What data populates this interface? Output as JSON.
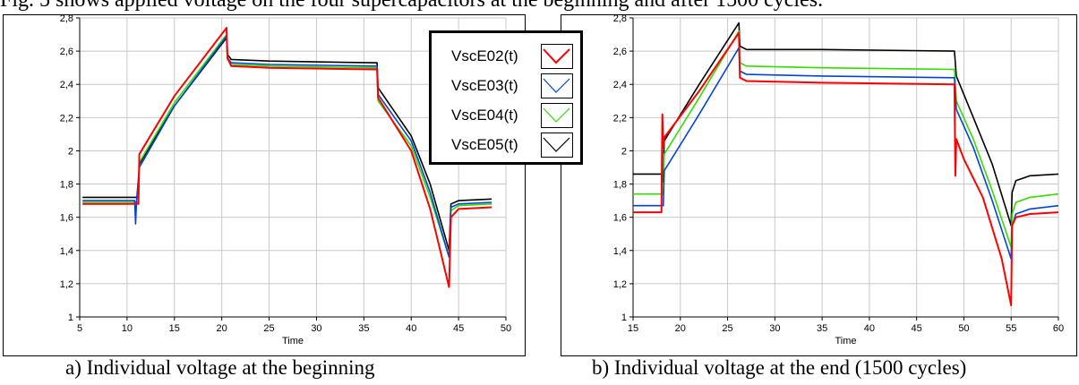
{
  "caption_top": "Fig. 5 shows applied voltage on the four supercapacitors at the beginning and after 1500 cycles.",
  "legend": [
    {
      "label": "VscE02(t)",
      "color": "#ff0000"
    },
    {
      "label": "VscE03(t)",
      "color": "#0044dd"
    },
    {
      "label": "VscE04(t)",
      "color": "#33dd00"
    },
    {
      "label": "VscE05(t)",
      "color": "#000000"
    }
  ],
  "chart_data": [
    {
      "type": "line",
      "caption": "a) Individual voltage at the beginning",
      "xlabel": "Time",
      "ylabel": "",
      "xlim": [
        5,
        50
      ],
      "ylim": [
        1,
        2.8
      ],
      "xticks": [
        5,
        10,
        15,
        20,
        25,
        30,
        35,
        40,
        45,
        50
      ],
      "yticks": [
        1,
        1.2,
        1.4,
        1.6,
        1.8,
        2,
        2.2,
        2.4,
        2.6,
        2.8
      ],
      "ytick_labels": [
        "1",
        "1,2",
        "1,4",
        "1,6",
        "1,8",
        "2",
        "2,2",
        "2,4",
        "2,6",
        "2,8"
      ],
      "grid": true,
      "legend_position": "top-right",
      "series": [
        {
          "name": "VscE02(t)",
          "color": "#ff0000",
          "x": [
            5.3,
            11,
            11.2,
            11.3,
            15,
            20.5,
            20.6,
            21,
            25,
            36,
            36.4,
            36.5,
            40,
            42,
            44,
            44.2,
            45,
            48.5
          ],
          "y": [
            1.68,
            1.68,
            1.68,
            1.98,
            2.33,
            2.74,
            2.56,
            2.51,
            2.5,
            2.49,
            2.49,
            2.32,
            2.0,
            1.65,
            1.18,
            1.6,
            1.65,
            1.66
          ]
        },
        {
          "name": "VscE03(t)",
          "color": "#0044dd",
          "x": [
            5.3,
            10.8,
            10.9,
            11,
            11.3,
            15,
            20.5,
            20.6,
            21,
            25,
            36,
            36.4,
            36.5,
            40,
            42,
            44,
            44.2,
            45,
            48.5
          ],
          "y": [
            1.7,
            1.7,
            1.56,
            1.7,
            1.9,
            2.27,
            2.69,
            2.56,
            2.53,
            2.52,
            2.51,
            2.51,
            2.34,
            2.06,
            1.75,
            1.36,
            1.66,
            1.68,
            1.69
          ]
        },
        {
          "name": "VscE04(t)",
          "color": "#33dd00",
          "x": [
            5.3,
            11,
            11.2,
            11.3,
            15,
            20.5,
            20.6,
            21,
            25,
            36,
            36.4,
            36.5,
            40,
            42,
            44,
            44.2,
            45,
            48.5
          ],
          "y": [
            1.69,
            1.69,
            1.69,
            1.93,
            2.29,
            2.7,
            2.55,
            2.52,
            2.51,
            2.5,
            2.5,
            2.3,
            2.03,
            1.72,
            1.36,
            1.64,
            1.67,
            1.68
          ]
        },
        {
          "name": "VscE05(t)",
          "color": "#000000",
          "x": [
            5.3,
            11,
            11.2,
            11.3,
            15,
            20.5,
            20.6,
            21,
            25,
            36,
            36.4,
            36.5,
            40,
            42,
            44,
            44.2,
            45,
            48.5
          ],
          "y": [
            1.72,
            1.72,
            1.72,
            1.92,
            2.27,
            2.68,
            2.58,
            2.55,
            2.54,
            2.53,
            2.53,
            2.38,
            2.09,
            1.8,
            1.4,
            1.68,
            1.7,
            1.71
          ]
        }
      ]
    },
    {
      "type": "line",
      "caption": "b) Individual voltage at the end (1500 cycles)",
      "xlabel": "Time",
      "ylabel": "",
      "xlim": [
        15,
        60
      ],
      "ylim": [
        1,
        2.8
      ],
      "xticks": [
        15,
        20,
        25,
        30,
        35,
        40,
        45,
        50,
        55,
        60
      ],
      "yticks": [
        1,
        1.2,
        1.4,
        1.6,
        1.8,
        2,
        2.2,
        2.4,
        2.6,
        2.8
      ],
      "ytick_labels": [
        "1",
        "1,2",
        "1,4",
        "1,6",
        "1,8",
        "2",
        "2,2",
        "2,4",
        "2,6",
        "2,8"
      ],
      "grid": true,
      "series": [
        {
          "name": "VscE02(t)",
          "color": "#ff0000",
          "x": [
            15,
            18,
            18.1,
            18.2,
            18.3,
            22,
            26.2,
            26.3,
            27,
            35,
            49,
            49.1,
            49.2,
            50,
            52,
            54,
            55,
            55.1,
            55.5,
            57,
            60
          ],
          "y": [
            1.63,
            1.63,
            2.22,
            2.02,
            2.08,
            2.36,
            2.71,
            2.44,
            2.42,
            2.41,
            2.4,
            1.85,
            2.07,
            1.95,
            1.72,
            1.35,
            1.07,
            1.55,
            1.6,
            1.62,
            1.63
          ]
        },
        {
          "name": "VscE03(t)",
          "color": "#0044dd",
          "x": [
            15,
            18,
            18.2,
            18.3,
            22,
            26.2,
            26.3,
            27,
            35,
            49,
            49.2,
            51,
            53,
            55,
            55.1,
            55.5,
            57,
            60
          ],
          "y": [
            1.67,
            1.67,
            1.67,
            1.88,
            2.22,
            2.62,
            2.48,
            2.46,
            2.45,
            2.44,
            2.25,
            2.02,
            1.7,
            1.35,
            1.55,
            1.62,
            1.65,
            1.67
          ]
        },
        {
          "name": "VscE04(t)",
          "color": "#33dd00",
          "x": [
            15,
            18,
            18.2,
            18.3,
            22,
            26.2,
            26.3,
            27,
            35,
            49,
            49.2,
            51,
            53,
            55,
            55.1,
            55.5,
            57,
            60
          ],
          "y": [
            1.74,
            1.74,
            1.74,
            1.98,
            2.32,
            2.72,
            2.53,
            2.51,
            2.5,
            2.49,
            2.3,
            2.07,
            1.76,
            1.42,
            1.62,
            1.69,
            1.72,
            1.74
          ]
        },
        {
          "name": "VscE05(t)",
          "color": "#000000",
          "x": [
            15,
            18,
            18.1,
            18.2,
            18.3,
            22,
            26.2,
            26.3,
            27,
            35,
            49,
            49.2,
            51,
            53,
            55,
            55.1,
            55.5,
            57,
            60
          ],
          "y": [
            1.86,
            1.86,
            1.81,
            1.86,
            2.06,
            2.4,
            2.77,
            2.63,
            2.61,
            2.61,
            2.6,
            2.45,
            2.2,
            1.92,
            1.55,
            1.75,
            1.82,
            1.85,
            1.86
          ]
        }
      ]
    }
  ]
}
